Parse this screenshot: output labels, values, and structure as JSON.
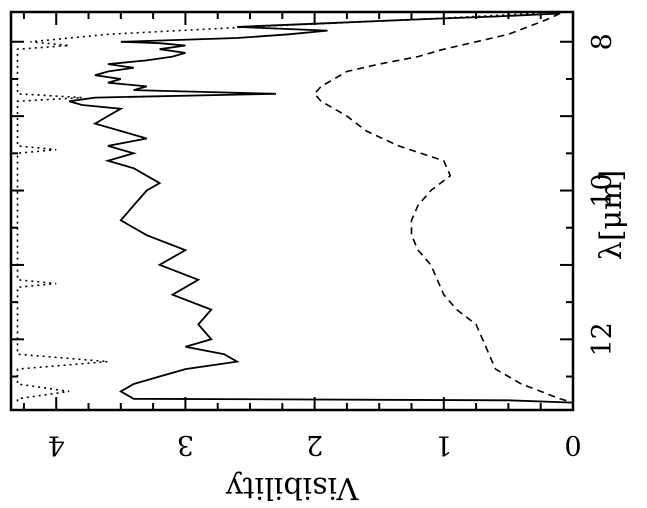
{
  "chart_data": {
    "type": "line",
    "xlabel": "λ[μm]",
    "ylabel": "Visibility",
    "xlim": [
      7.6,
      12.95
    ],
    "ylim": [
      0,
      4.35
    ],
    "x_ticks": [
      "8",
      "10",
      "12"
    ],
    "y_ticks": [
      "0",
      "1",
      "2",
      "3",
      "4"
    ],
    "grid": false,
    "series": [
      {
        "style": "solid",
        "x": [
          7.62,
          7.66,
          7.7,
          7.75,
          7.8,
          7.85,
          7.9,
          7.95,
          8.0,
          8.02,
          8.05,
          8.1,
          8.15,
          8.2,
          8.25,
          8.3,
          8.35,
          8.4,
          8.45,
          8.5,
          8.55,
          8.6,
          8.65,
          8.7,
          8.75,
          8.8,
          8.85,
          8.9,
          9.0,
          9.1,
          9.2,
          9.3,
          9.4,
          9.5,
          9.6,
          9.7,
          9.8,
          9.9,
          10.0,
          10.2,
          10.4,
          10.6,
          10.8,
          11.0,
          11.2,
          11.4,
          11.6,
          11.8,
          12.0,
          12.1,
          12.2,
          12.3,
          12.4,
          12.5,
          12.6,
          12.7,
          12.8,
          12.82,
          12.85
        ],
        "y": [
          0.1,
          0.6,
          1.2,
          1.9,
          2.6,
          1.9,
          2.2,
          2.6,
          3.5,
          3.2,
          3.0,
          3.2,
          3.0,
          3.1,
          3.3,
          3.6,
          3.4,
          3.6,
          3.7,
          3.5,
          3.6,
          3.3,
          3.4,
          2.3,
          3.7,
          3.9,
          3.8,
          3.5,
          3.6,
          3.7,
          3.5,
          3.3,
          3.6,
          3.4,
          3.6,
          3.4,
          3.3,
          3.2,
          3.3,
          3.4,
          3.5,
          3.3,
          3.0,
          3.2,
          2.9,
          3.1,
          2.8,
          2.9,
          2.8,
          3.0,
          2.7,
          2.6,
          3.0,
          3.2,
          3.4,
          3.5,
          3.4,
          0.5,
          0.0
        ]
      },
      {
        "style": "dashed",
        "x": [
          7.62,
          7.7,
          7.8,
          7.9,
          8.0,
          8.1,
          8.2,
          8.3,
          8.4,
          8.5,
          8.6,
          8.7,
          8.8,
          8.9,
          9.0,
          9.2,
          9.4,
          9.6,
          9.8,
          10.0,
          10.2,
          10.4,
          10.6,
          10.8,
          11.0,
          11.2,
          11.4,
          11.6,
          11.8,
          12.0,
          12.2,
          12.4,
          12.5,
          12.6,
          12.7,
          12.8,
          12.85
        ],
        "y": [
          0.1,
          0.2,
          0.35,
          0.5,
          0.75,
          1.0,
          1.2,
          1.5,
          1.75,
          1.85,
          1.95,
          2.0,
          1.95,
          1.85,
          1.75,
          1.6,
          1.35,
          1.0,
          0.95,
          1.1,
          1.2,
          1.25,
          1.25,
          1.2,
          1.1,
          1.05,
          1.0,
          0.9,
          0.75,
          0.7,
          0.65,
          0.6,
          0.5,
          0.4,
          0.25,
          0.1,
          0.0
        ]
      },
      {
        "style": "dotted",
        "x": [
          7.62,
          7.7,
          7.8,
          7.9,
          8.0,
          8.05,
          8.1,
          8.2,
          8.5,
          8.7,
          8.75,
          8.8,
          9.0,
          9.4,
          9.45,
          9.5,
          10.0,
          10.5,
          11.0,
          11.2,
          11.25,
          11.3,
          11.5,
          11.8,
          12.2,
          12.3,
          12.4,
          12.6,
          12.7,
          12.8,
          12.85
        ],
        "y": [
          0.3,
          1.2,
          2.5,
          3.6,
          4.2,
          3.9,
          4.3,
          4.3,
          4.3,
          4.3,
          3.8,
          4.3,
          4.3,
          4.3,
          4.0,
          4.3,
          4.3,
          4.3,
          4.3,
          4.3,
          4.0,
          4.3,
          4.3,
          4.3,
          4.3,
          3.6,
          4.3,
          4.3,
          3.9,
          4.3,
          4.3
        ]
      }
    ]
  }
}
